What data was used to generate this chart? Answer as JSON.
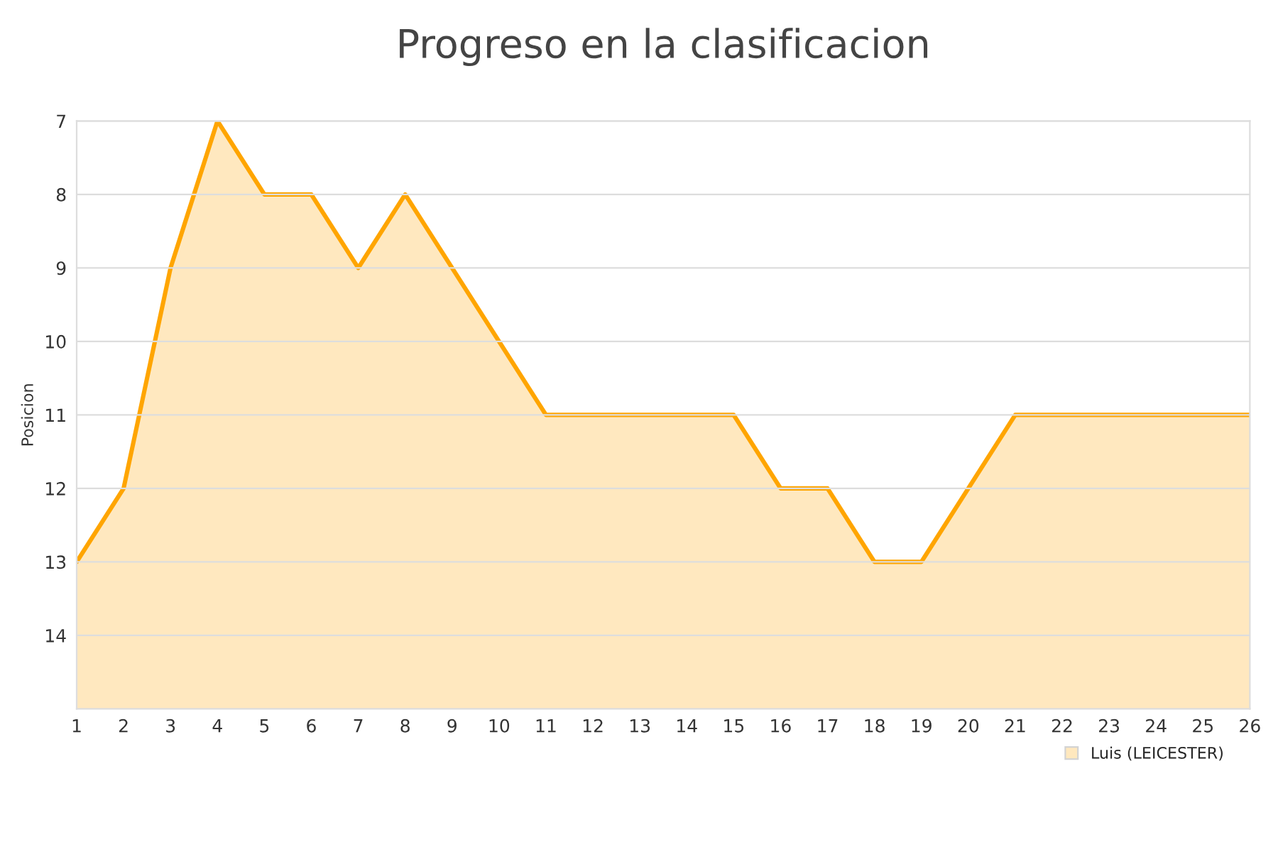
{
  "chart_data": {
    "type": "area",
    "title": "Progreso en la clasificacion",
    "ylabel": "Posicion",
    "x": [
      1,
      2,
      3,
      4,
      5,
      6,
      7,
      8,
      9,
      10,
      11,
      12,
      13,
      14,
      15,
      16,
      17,
      18,
      19,
      20,
      21,
      22,
      23,
      24,
      25,
      26
    ],
    "series": [
      {
        "name": "Luis (LEICESTER)",
        "color": "#ffa500",
        "values": [
          13,
          12,
          9,
          7,
          8,
          8,
          9,
          8,
          9,
          10,
          11,
          11,
          11,
          11,
          11,
          12,
          12,
          13,
          13,
          12,
          11,
          11,
          11,
          11,
          11,
          11
        ]
      }
    ],
    "xlim": [
      1,
      26
    ],
    "xticks": [
      1,
      2,
      3,
      4,
      5,
      6,
      7,
      8,
      9,
      10,
      11,
      12,
      13,
      14,
      15,
      16,
      17,
      18,
      19,
      20,
      21,
      22,
      23,
      24,
      25,
      26
    ],
    "ylim": [
      15,
      7
    ],
    "yticks": [
      7,
      8,
      9,
      10,
      11,
      12,
      13,
      14
    ],
    "grid": "y",
    "legend": "bottom right"
  }
}
